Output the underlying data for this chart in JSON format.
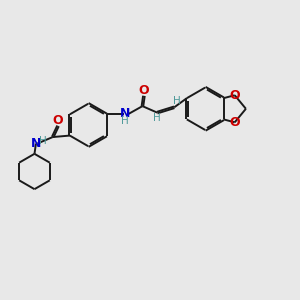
{
  "bg_color": "#e8e8e8",
  "bond_color": "#1a1a1a",
  "N_color": "#0000cc",
  "O_color": "#cc0000",
  "H_color": "#4d9999",
  "line_width": 1.4,
  "figsize": [
    3.0,
    3.0
  ],
  "dpi": 100,
  "xlim": [
    0,
    10
  ],
  "ylim": [
    0,
    10
  ],
  "r_benz": 0.72,
  "r_cyc": 0.6,
  "dbo": 0.028
}
